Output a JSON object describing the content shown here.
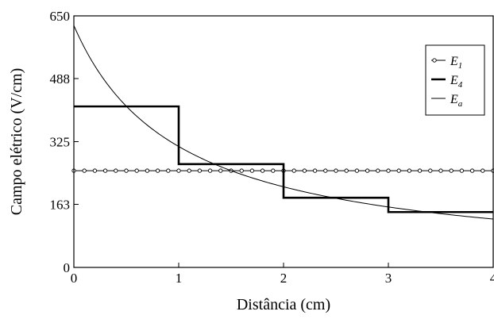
{
  "chart_data": {
    "type": "line",
    "title": "",
    "xlabel": "Distância (cm)",
    "ylabel": "Campo elétrico (V/cm)",
    "xlim": [
      0,
      4
    ],
    "ylim": [
      0,
      650
    ],
    "x_ticks": [
      "0",
      "1",
      "2",
      "3",
      "4"
    ],
    "y_ticks": [
      "0",
      "163",
      "325",
      "488",
      "650"
    ],
    "grid": false,
    "legend_position": "top-right",
    "series": [
      {
        "name": "E",
        "subscript": "1",
        "style": "line-circles",
        "x": [
          0,
          4
        ],
        "y": [
          250,
          250
        ]
      },
      {
        "name": "E",
        "subscript": "4",
        "style": "thick-step",
        "steps": [
          {
            "x0": 0,
            "x1": 1,
            "y": 416
          },
          {
            "x0": 1,
            "x1": 2,
            "y": 267
          },
          {
            "x0": 2,
            "x1": 3,
            "y": 180
          },
          {
            "x0": 3,
            "x1": 4,
            "y": 143
          }
        ]
      },
      {
        "name": "E",
        "subscript": "a",
        "style": "thin-curve",
        "x": [
          0,
          0.5,
          1,
          1.5,
          2,
          2.5,
          3,
          3.5,
          4
        ],
        "y": [
          625,
          416,
          312,
          250,
          208,
          179,
          156,
          139,
          125
        ]
      }
    ]
  }
}
